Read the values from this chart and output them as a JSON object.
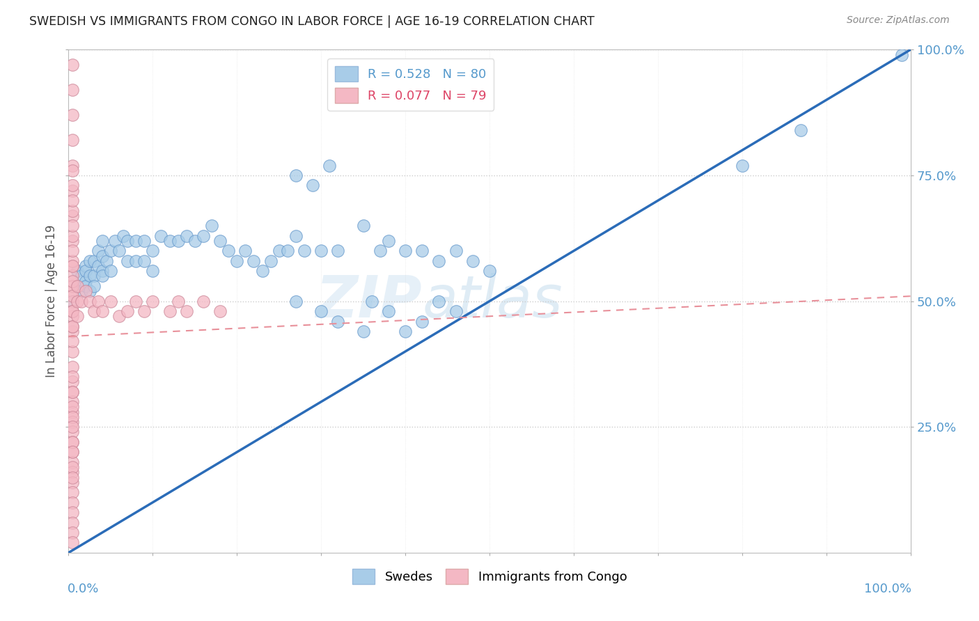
{
  "title": "SWEDISH VS IMMIGRANTS FROM CONGO IN LABOR FORCE | AGE 16-19 CORRELATION CHART",
  "source": "Source: ZipAtlas.com",
  "ylabel": "In Labor Force | Age 16-19",
  "xlim": [
    0,
    1
  ],
  "ylim": [
    0,
    1
  ],
  "ytick_positions": [
    0.25,
    0.5,
    0.75,
    1.0
  ],
  "ytick_labels": [
    "25.0%",
    "50.0%",
    "75.0%",
    "100.0%"
  ],
  "legend_r1": "R = 0.528",
  "legend_n1": "N = 80",
  "legend_r2": "R = 0.077",
  "legend_n2": "N = 79",
  "watermark": "ZIPatlas",
  "blue_color": "#a8cce8",
  "pink_color": "#f4b8c4",
  "blue_line_color": "#2b6cb8",
  "pink_line_color": "#e8909a",
  "axis_color": "#5599cc",
  "grid_color": "#cccccc",
  "blue_slope": 1.0,
  "blue_intercept": 0.0,
  "pink_slope": 0.08,
  "pink_intercept": 0.43,
  "swedes_x": [
    0.005,
    0.01,
    0.01,
    0.015,
    0.015,
    0.02,
    0.02,
    0.02,
    0.02,
    0.025,
    0.025,
    0.025,
    0.03,
    0.03,
    0.03,
    0.035,
    0.035,
    0.04,
    0.04,
    0.04,
    0.04,
    0.045,
    0.05,
    0.05,
    0.055,
    0.06,
    0.065,
    0.07,
    0.07,
    0.08,
    0.08,
    0.09,
    0.09,
    0.1,
    0.1,
    0.11,
    0.12,
    0.13,
    0.14,
    0.15,
    0.16,
    0.17,
    0.18,
    0.19,
    0.2,
    0.21,
    0.22,
    0.23,
    0.24,
    0.25,
    0.26,
    0.27,
    0.28,
    0.3,
    0.32,
    0.35,
    0.37,
    0.38,
    0.4,
    0.42,
    0.44,
    0.46,
    0.48,
    0.5,
    0.27,
    0.3,
    0.32,
    0.35,
    0.36,
    0.38,
    0.4,
    0.42,
    0.44,
    0.46,
    0.27,
    0.29,
    0.31,
    0.8,
    0.87,
    0.99
  ],
  "swedes_y": [
    0.5,
    0.53,
    0.56,
    0.52,
    0.55,
    0.54,
    0.57,
    0.53,
    0.56,
    0.55,
    0.58,
    0.52,
    0.55,
    0.58,
    0.53,
    0.57,
    0.6,
    0.56,
    0.59,
    0.55,
    0.62,
    0.58,
    0.6,
    0.56,
    0.62,
    0.6,
    0.63,
    0.62,
    0.58,
    0.62,
    0.58,
    0.62,
    0.58,
    0.6,
    0.56,
    0.63,
    0.62,
    0.62,
    0.63,
    0.62,
    0.63,
    0.65,
    0.62,
    0.6,
    0.58,
    0.6,
    0.58,
    0.56,
    0.58,
    0.6,
    0.6,
    0.63,
    0.6,
    0.6,
    0.6,
    0.65,
    0.6,
    0.62,
    0.6,
    0.6,
    0.58,
    0.6,
    0.58,
    0.56,
    0.5,
    0.48,
    0.46,
    0.44,
    0.5,
    0.48,
    0.44,
    0.46,
    0.5,
    0.48,
    0.75,
    0.73,
    0.77,
    0.77,
    0.84,
    0.99
  ],
  "congo_x": [
    0.005,
    0.005,
    0.005,
    0.005,
    0.005,
    0.005,
    0.005,
    0.005,
    0.005,
    0.005,
    0.005,
    0.005,
    0.005,
    0.005,
    0.005,
    0.005,
    0.005,
    0.005,
    0.005,
    0.005,
    0.005,
    0.005,
    0.005,
    0.005,
    0.005,
    0.005,
    0.005,
    0.005,
    0.005,
    0.005,
    0.005,
    0.005,
    0.005,
    0.005,
    0.005,
    0.005,
    0.005,
    0.005,
    0.005,
    0.005,
    0.005,
    0.005,
    0.005,
    0.005,
    0.005,
    0.005,
    0.005,
    0.005,
    0.005,
    0.005,
    0.01,
    0.01,
    0.01,
    0.015,
    0.02,
    0.025,
    0.03,
    0.035,
    0.04,
    0.05,
    0.06,
    0.07,
    0.08,
    0.09,
    0.1,
    0.12,
    0.13,
    0.14,
    0.16,
    0.18,
    0.005,
    0.005,
    0.005,
    0.005,
    0.005,
    0.005,
    0.005,
    0.005,
    0.005
  ],
  "congo_y": [
    0.97,
    0.92,
    0.87,
    0.82,
    0.77,
    0.72,
    0.67,
    0.62,
    0.57,
    0.52,
    0.47,
    0.44,
    0.4,
    0.37,
    0.34,
    0.32,
    0.3,
    0.28,
    0.26,
    0.24,
    0.22,
    0.2,
    0.18,
    0.16,
    0.14,
    0.12,
    0.1,
    0.08,
    0.06,
    0.04,
    0.02,
    0.55,
    0.58,
    0.5,
    0.53,
    0.48,
    0.45,
    0.42,
    0.6,
    0.63,
    0.57,
    0.54,
    0.51,
    0.65,
    0.68,
    0.7,
    0.73,
    0.76,
    0.48,
    0.45,
    0.5,
    0.53,
    0.47,
    0.5,
    0.52,
    0.5,
    0.48,
    0.5,
    0.48,
    0.5,
    0.47,
    0.48,
    0.5,
    0.48,
    0.5,
    0.48,
    0.5,
    0.48,
    0.5,
    0.48,
    0.35,
    0.32,
    0.29,
    0.27,
    0.25,
    0.22,
    0.2,
    0.17,
    0.15
  ]
}
